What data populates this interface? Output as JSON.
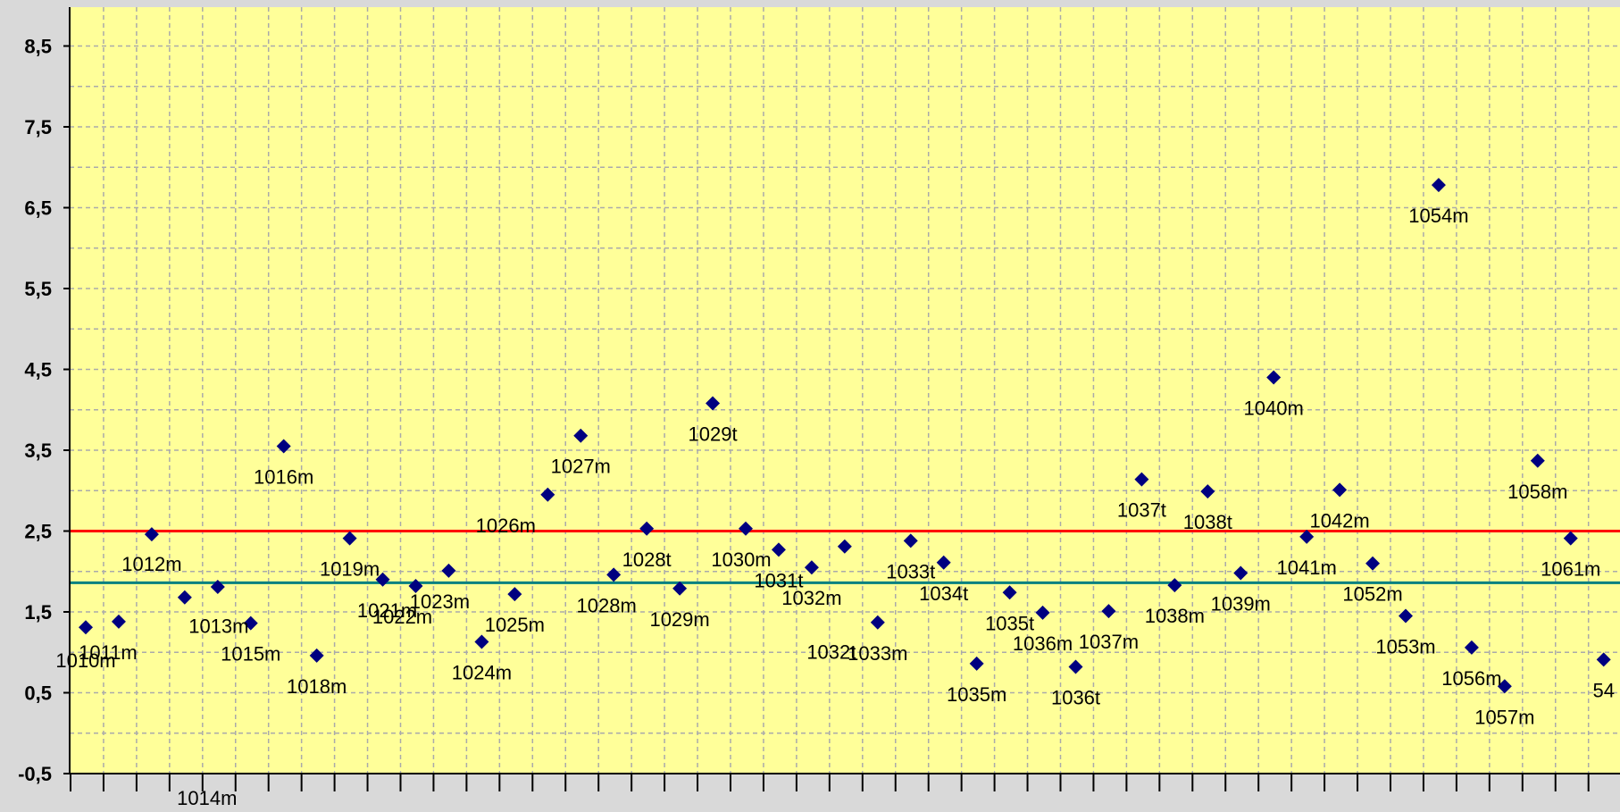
{
  "chart_data": {
    "type": "scatter",
    "title": "",
    "xlabel": "",
    "ylabel": "",
    "ylim": [
      -0.5,
      8.9
    ],
    "yticks": [
      "-0,5",
      "0,5",
      "1,5",
      "2,5",
      "3,5",
      "4,5",
      "5,5",
      "6,5",
      "7,5",
      "8,5"
    ],
    "ytick_values": [
      -0.5,
      0.5,
      1.5,
      2.5,
      3.5,
      4.5,
      5.5,
      6.5,
      7.5,
      8.5
    ],
    "grid": true,
    "plot_background": "#ffff99",
    "figure_background": "#d9d9d9",
    "marker": "diamond",
    "marker_color": "#000080",
    "x_category_count": 48,
    "reference_lines": [
      {
        "value": 2.5,
        "color": "#ff0000"
      },
      {
        "value": 1.86,
        "color": "#008080"
      }
    ],
    "points": [
      {
        "label": "1010m",
        "x": 1,
        "y": 1.31
      },
      {
        "label": "1011m",
        "x": 2,
        "y": 1.38
      },
      {
        "label": "1012m",
        "x": 3,
        "y": 2.46
      },
      {
        "label": "1013m",
        "x": 4,
        "y": 1.68
      },
      {
        "label": "1014m",
        "x": 5,
        "y": 1.81
      },
      {
        "label": "1015m",
        "x": 6,
        "y": 1.36
      },
      {
        "label": "1016m",
        "x": 7,
        "y": 3.55
      },
      {
        "label": "1018m",
        "x": 8,
        "y": 0.96
      },
      {
        "label": "1019m",
        "x": 9,
        "y": 2.41
      },
      {
        "label": "1021m",
        "x": 10,
        "y": 1.9
      },
      {
        "label": "1022m",
        "x": 11,
        "y": 1.82
      },
      {
        "label": "1023m",
        "x": 12,
        "y": 2.01
      },
      {
        "label": "1024m",
        "x": 13,
        "y": 1.13
      },
      {
        "label": "1025m",
        "x": 14,
        "y": 1.72
      },
      {
        "label": "1026m",
        "x": 15,
        "y": 2.95
      },
      {
        "label": "1027m",
        "x": 16,
        "y": 3.68
      },
      {
        "label": "1028m",
        "x": 17,
        "y": 1.96
      },
      {
        "label": "1028t",
        "x": 18,
        "y": 2.53
      },
      {
        "label": "1029m",
        "x": 19,
        "y": 1.79
      },
      {
        "label": "1029t",
        "x": 20,
        "y": 4.08
      },
      {
        "label": "1030m",
        "x": 21,
        "y": 2.53
      },
      {
        "label": "1031t",
        "x": 22,
        "y": 2.27
      },
      {
        "label": "1032m",
        "x": 23,
        "y": 2.05
      },
      {
        "label": "1032t",
        "x": 24,
        "y": 2.31
      },
      {
        "label": "1033m",
        "x": 25,
        "y": 1.37
      },
      {
        "label": "1033t",
        "x": 26,
        "y": 2.38
      },
      {
        "label": "1034t",
        "x": 27,
        "y": 2.11
      },
      {
        "label": "1035m",
        "x": 28,
        "y": 0.86
      },
      {
        "label": "1035t",
        "x": 29,
        "y": 1.74
      },
      {
        "label": "1036m",
        "x": 30,
        "y": 1.49
      },
      {
        "label": "1036t",
        "x": 31,
        "y": 0.82
      },
      {
        "label": "1037m",
        "x": 32,
        "y": 1.51
      },
      {
        "label": "1037t",
        "x": 33,
        "y": 3.14
      },
      {
        "label": "1038m",
        "x": 34,
        "y": 1.83
      },
      {
        "label": "1038t",
        "x": 35,
        "y": 2.99
      },
      {
        "label": "1039m",
        "x": 36,
        "y": 1.98
      },
      {
        "label": "1040m",
        "x": 37,
        "y": 4.4
      },
      {
        "label": "1041m",
        "x": 38,
        "y": 2.43
      },
      {
        "label": "1042m",
        "x": 39,
        "y": 3.01
      },
      {
        "label": "1052m",
        "x": 40,
        "y": 2.1
      },
      {
        "label": "1053m",
        "x": 41,
        "y": 1.45
      },
      {
        "label": "1054m",
        "x": 42,
        "y": 6.78
      },
      {
        "label": "1056m",
        "x": 43,
        "y": 1.06
      },
      {
        "label": "1057m",
        "x": 44,
        "y": 0.58
      },
      {
        "label": "1058m",
        "x": 45,
        "y": 3.37
      },
      {
        "label": "1061m",
        "x": 46,
        "y": 2.41
      },
      {
        "label": "54",
        "x": 47,
        "y": 0.91
      }
    ]
  }
}
